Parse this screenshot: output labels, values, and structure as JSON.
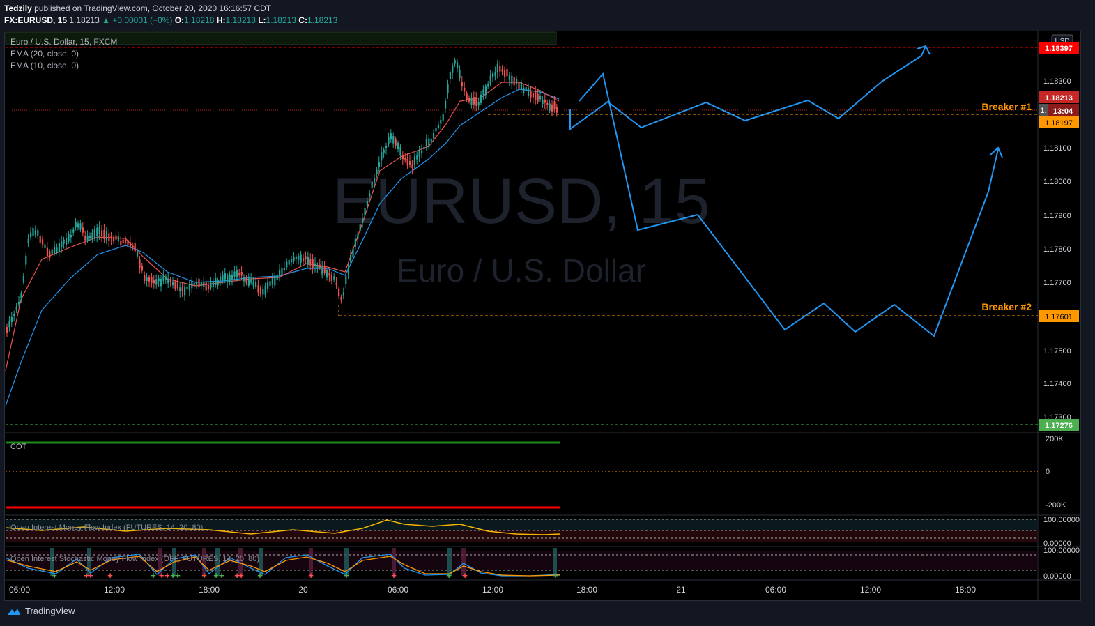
{
  "header": {
    "author": "Tedzily",
    "published": "published on TradingView.com, October 20, 2020 16:16:57 CDT",
    "symbol": "FX:EURUSD, 15",
    "last": "1.18213",
    "change": "▲ +0.00001 (+0%)",
    "o_label": "O:",
    "o": "1.18218",
    "h_label": "H:",
    "h": "1.18218",
    "l_label": "L:",
    "l": "1.18213",
    "c_label": "C:",
    "c": "1.18213"
  },
  "legend": {
    "title": "Euro / U.S. Dollar, 15, FXCM",
    "ema20": "EMA (20, close, 0)",
    "ema10": "EMA (10, close, 0)"
  },
  "watermark": {
    "symbol": "EURUSD, 15",
    "name": "Euro / U.S. Dollar"
  },
  "price_axis": {
    "currency": "USD",
    "ticks": [
      "1.18300",
      "1.18100",
      "1.18000",
      "1.17900",
      "1.17800",
      "1.17700",
      "1.17500",
      "1.17400",
      "1.17300"
    ],
    "labels": {
      "top_red": "1.18397",
      "last_price": "1.18213",
      "countdown": "13:04",
      "countdown_prefix": "1.",
      "breaker1_price": "1.18197",
      "breaker2_price": "1.17601",
      "bottom_green": "1.17276"
    }
  },
  "annotations": {
    "breaker1": "Breaker #1",
    "breaker2": "Breaker #2"
  },
  "cot": {
    "label": "COT",
    "ticks": [
      "200K",
      "0",
      "-200K"
    ]
  },
  "oimfi": {
    "label": "Open Interest Money Flow Index (FUTURES, 14, 20, 80)",
    "ticks": [
      "100.00000",
      "0.00000"
    ]
  },
  "oismfi": {
    "label": "Open Interest Stochastic Money Flow Index (OFF, FUTURES, 14, 20, 80)",
    "ticks": [
      "100.00000",
      "0.00000"
    ]
  },
  "time_axis": [
    "06:00",
    "12:00",
    "18:00",
    "20",
    "06:00",
    "12:00",
    "18:00",
    "21",
    "06:00",
    "12:00",
    "18:00"
  ],
  "footer": {
    "brand": "TradingView"
  },
  "colors": {
    "bg": "#000000",
    "up": "#26a69a",
    "down": "#ef5350",
    "ema20": "#2196f3",
    "ema10": "#ef5350",
    "projection": "#2196f3",
    "breaker": "#ff9800",
    "level_red": "#ff0000",
    "level_green": "#4caf50"
  }
}
